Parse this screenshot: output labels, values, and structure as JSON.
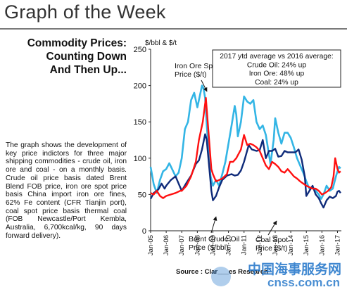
{
  "page": {
    "title": "Graph of the Week",
    "headline": [
      "Commodity Prices:",
      "Counting Down",
      "And Then Up..."
    ],
    "description": "The graph shows the development of key price indictors for three major shipping commodities - crude oil, iron ore and coal - on a monthly basis. Crude oil price basis dated Brent Blend FOB price, iron ore spot price basis China import iron ore fines, 62% Fe content (CFR Tianjin port), coal spot price basis thermal coal (FOB Newcastle/Port Kembla, Australia, 6,700kcal/kg, 90 days forward delivery).",
    "source": "Source : Clar___es Research",
    "watermark_top": "中国海事服务网",
    "watermark_bottom": "cnss.com.cn"
  },
  "colors": {
    "iron_ore": "#33b5e5",
    "crude_oil": "#0f2b7a",
    "coal": "#ff1010",
    "box_border": "#222222"
  },
  "chart_data": {
    "type": "line",
    "ylabel": "$/bbl & $/t",
    "ylim": [
      0,
      250
    ],
    "yticks": [
      0,
      50,
      100,
      150,
      200,
      250
    ],
    "xlim": [
      2005.0,
      2017.25
    ],
    "x_tick_labels": [
      "Jan-05",
      "Jan-06",
      "Jan-07",
      "Jan-08",
      "Jan-09",
      "Jan-10",
      "Jan-11",
      "Jan-12",
      "Jan-13",
      "Jan-14",
      "Jan-15",
      "Jan-16",
      "Jan-17"
    ],
    "grid": false,
    "series": [
      {
        "name": "Iron Ore Spot Price ($/t)",
        "key": "iron_ore",
        "points": [
          [
            2005.0,
            88
          ],
          [
            2005.2,
            64
          ],
          [
            2005.4,
            52
          ],
          [
            2005.6,
            70
          ],
          [
            2005.8,
            82
          ],
          [
            2006.0,
            85
          ],
          [
            2006.2,
            93
          ],
          [
            2006.4,
            84
          ],
          [
            2006.6,
            75
          ],
          [
            2006.8,
            80
          ],
          [
            2007.0,
            100
          ],
          [
            2007.2,
            140
          ],
          [
            2007.4,
            150
          ],
          [
            2007.6,
            180
          ],
          [
            2007.8,
            190
          ],
          [
            2008.0,
            170
          ],
          [
            2008.15,
            185
          ],
          [
            2008.3,
            200
          ],
          [
            2008.4,
            196
          ],
          [
            2008.5,
            183
          ],
          [
            2008.6,
            148
          ],
          [
            2008.75,
            100
          ],
          [
            2008.85,
            75
          ],
          [
            2009.0,
            62
          ],
          [
            2009.2,
            70
          ],
          [
            2009.4,
            62
          ],
          [
            2009.6,
            78
          ],
          [
            2009.8,
            95
          ],
          [
            2010.0,
            120
          ],
          [
            2010.2,
            145
          ],
          [
            2010.4,
            172
          ],
          [
            2010.5,
            160
          ],
          [
            2010.6,
            130
          ],
          [
            2010.8,
            150
          ],
          [
            2011.0,
            185
          ],
          [
            2011.2,
            178
          ],
          [
            2011.4,
            175
          ],
          [
            2011.6,
            180
          ],
          [
            2011.8,
            150
          ],
          [
            2012.0,
            140
          ],
          [
            2012.2,
            145
          ],
          [
            2012.4,
            132
          ],
          [
            2012.6,
            105
          ],
          [
            2012.7,
            92
          ],
          [
            2012.9,
            125
          ],
          [
            2013.0,
            155
          ],
          [
            2013.2,
            135
          ],
          [
            2013.4,
            120
          ],
          [
            2013.6,
            135
          ],
          [
            2013.8,
            135
          ],
          [
            2014.0,
            128
          ],
          [
            2014.2,
            115
          ],
          [
            2014.4,
            100
          ],
          [
            2014.6,
            90
          ],
          [
            2014.8,
            80
          ],
          [
            2015.0,
            68
          ],
          [
            2015.2,
            58
          ],
          [
            2015.4,
            60
          ],
          [
            2015.6,
            55
          ],
          [
            2015.8,
            50
          ],
          [
            2015.95,
            44
          ],
          [
            2016.1,
            50
          ],
          [
            2016.3,
            62
          ],
          [
            2016.5,
            55
          ],
          [
            2016.7,
            58
          ],
          [
            2016.9,
            75
          ],
          [
            2017.0,
            82
          ],
          [
            2017.1,
            88
          ],
          [
            2017.2,
            86
          ]
        ]
      },
      {
        "name": "Brent Crude Oil Price ($/bbl)",
        "key": "crude_oil",
        "points": [
          [
            2005.0,
            44
          ],
          [
            2005.2,
            52
          ],
          [
            2005.5,
            57
          ],
          [
            2005.7,
            65
          ],
          [
            2005.9,
            58
          ],
          [
            2006.0,
            62
          ],
          [
            2006.3,
            70
          ],
          [
            2006.6,
            75
          ],
          [
            2006.9,
            60
          ],
          [
            2007.0,
            55
          ],
          [
            2007.3,
            66
          ],
          [
            2007.6,
            76
          ],
          [
            2007.9,
            92
          ],
          [
            2008.1,
            97
          ],
          [
            2008.3,
            112
          ],
          [
            2008.5,
            133
          ],
          [
            2008.6,
            126
          ],
          [
            2008.75,
            90
          ],
          [
            2008.9,
            55
          ],
          [
            2009.0,
            42
          ],
          [
            2009.2,
            48
          ],
          [
            2009.4,
            60
          ],
          [
            2009.6,
            70
          ],
          [
            2009.9,
            76
          ],
          [
            2010.2,
            78
          ],
          [
            2010.4,
            76
          ],
          [
            2010.6,
            77
          ],
          [
            2010.8,
            83
          ],
          [
            2011.0,
            95
          ],
          [
            2011.3,
            118
          ],
          [
            2011.5,
            112
          ],
          [
            2011.8,
            110
          ],
          [
            2012.0,
            111
          ],
          [
            2012.2,
            125
          ],
          [
            2012.4,
            100
          ],
          [
            2012.6,
            110
          ],
          [
            2012.8,
            110
          ],
          [
            2013.0,
            113
          ],
          [
            2013.2,
            102
          ],
          [
            2013.4,
            103
          ],
          [
            2013.6,
            110
          ],
          [
            2013.8,
            108
          ],
          [
            2014.0,
            108
          ],
          [
            2014.3,
            108
          ],
          [
            2014.5,
            112
          ],
          [
            2014.7,
            98
          ],
          [
            2014.9,
            75
          ],
          [
            2015.0,
            48
          ],
          [
            2015.2,
            55
          ],
          [
            2015.4,
            62
          ],
          [
            2015.6,
            50
          ],
          [
            2015.8,
            45
          ],
          [
            2015.95,
            38
          ],
          [
            2016.1,
            32
          ],
          [
            2016.3,
            42
          ],
          [
            2016.5,
            47
          ],
          [
            2016.7,
            45
          ],
          [
            2016.9,
            48
          ],
          [
            2017.0,
            54
          ],
          [
            2017.1,
            55
          ],
          [
            2017.2,
            52
          ]
        ]
      },
      {
        "name": "Coal Spot Price ($/t)",
        "key": "coal",
        "points": [
          [
            2005.0,
            52
          ],
          [
            2005.2,
            50
          ],
          [
            2005.4,
            55
          ],
          [
            2005.6,
            48
          ],
          [
            2005.8,
            45
          ],
          [
            2006.0,
            48
          ],
          [
            2006.3,
            50
          ],
          [
            2006.6,
            52
          ],
          [
            2006.9,
            55
          ],
          [
            2007.0,
            55
          ],
          [
            2007.3,
            62
          ],
          [
            2007.6,
            75
          ],
          [
            2007.9,
            95
          ],
          [
            2008.1,
            125
          ],
          [
            2008.35,
            150
          ],
          [
            2008.55,
            183
          ],
          [
            2008.7,
            140
          ],
          [
            2008.9,
            85
          ],
          [
            2009.0,
            78
          ],
          [
            2009.2,
            68
          ],
          [
            2009.4,
            70
          ],
          [
            2009.6,
            72
          ],
          [
            2009.9,
            78
          ],
          [
            2010.1,
            95
          ],
          [
            2010.3,
            95
          ],
          [
            2010.5,
            100
          ],
          [
            2010.8,
            112
          ],
          [
            2011.0,
            132
          ],
          [
            2011.2,
            118
          ],
          [
            2011.4,
            120
          ],
          [
            2011.6,
            118
          ],
          [
            2011.8,
            115
          ],
          [
            2012.0,
            110
          ],
          [
            2012.2,
            100
          ],
          [
            2012.4,
            90
          ],
          [
            2012.6,
            85
          ],
          [
            2012.8,
            95
          ],
          [
            2013.0,
            92
          ],
          [
            2013.2,
            88
          ],
          [
            2013.4,
            82
          ],
          [
            2013.6,
            80
          ],
          [
            2013.8,
            85
          ],
          [
            2014.0,
            80
          ],
          [
            2014.2,
            75
          ],
          [
            2014.4,
            72
          ],
          [
            2014.6,
            68
          ],
          [
            2014.8,
            65
          ],
          [
            2015.0,
            62
          ],
          [
            2015.2,
            60
          ],
          [
            2015.4,
            58
          ],
          [
            2015.6,
            58
          ],
          [
            2015.8,
            55
          ],
          [
            2016.0,
            50
          ],
          [
            2016.2,
            52
          ],
          [
            2016.4,
            55
          ],
          [
            2016.6,
            60
          ],
          [
            2016.75,
            75
          ],
          [
            2016.85,
            100
          ],
          [
            2017.0,
            85
          ],
          [
            2017.1,
            80
          ],
          [
            2017.2,
            82
          ]
        ]
      }
    ],
    "series_labels": [
      {
        "lines": [
          "Iron Ore Spot",
          "Price ($/t)"
        ],
        "arrow": true
      },
      {
        "lines": [
          "Brent Crude Oil",
          "Price ($/bbl)"
        ],
        "arrow": true
      },
      {
        "lines": [
          "Coal Spot",
          "Price ($/t)"
        ],
        "arrow": true
      }
    ],
    "annotation": {
      "lines": [
        "2017 ytd average vs 2016 average:",
        "Crude Oil: 24% up",
        "Iron Ore: 48% up",
        "Coal: 24% up"
      ]
    }
  }
}
